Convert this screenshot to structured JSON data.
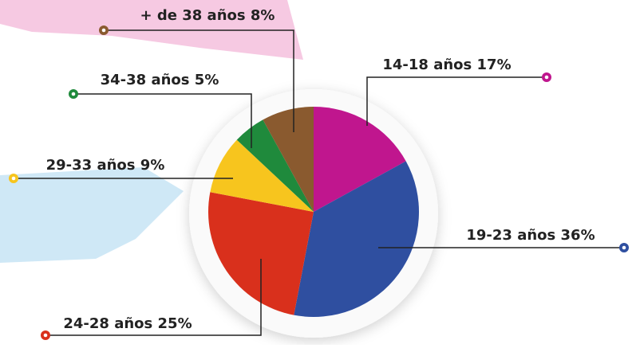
{
  "chart_data": {
    "type": "pie",
    "categories": [
      "14-18 años",
      "19-23 años",
      "24-28 años",
      "29-33 años",
      "34-38 años",
      "+ de 38 años"
    ],
    "values": [
      17,
      36,
      25,
      9,
      5,
      8
    ],
    "value_labels": [
      "17%",
      "36%",
      "25%",
      "9%",
      "5%",
      "8%"
    ],
    "colors": [
      "#c0168e",
      "#2f4fa0",
      "#d9301c",
      "#f7c51e",
      "#1f8a3c",
      "#8a5a2f"
    ]
  }
}
